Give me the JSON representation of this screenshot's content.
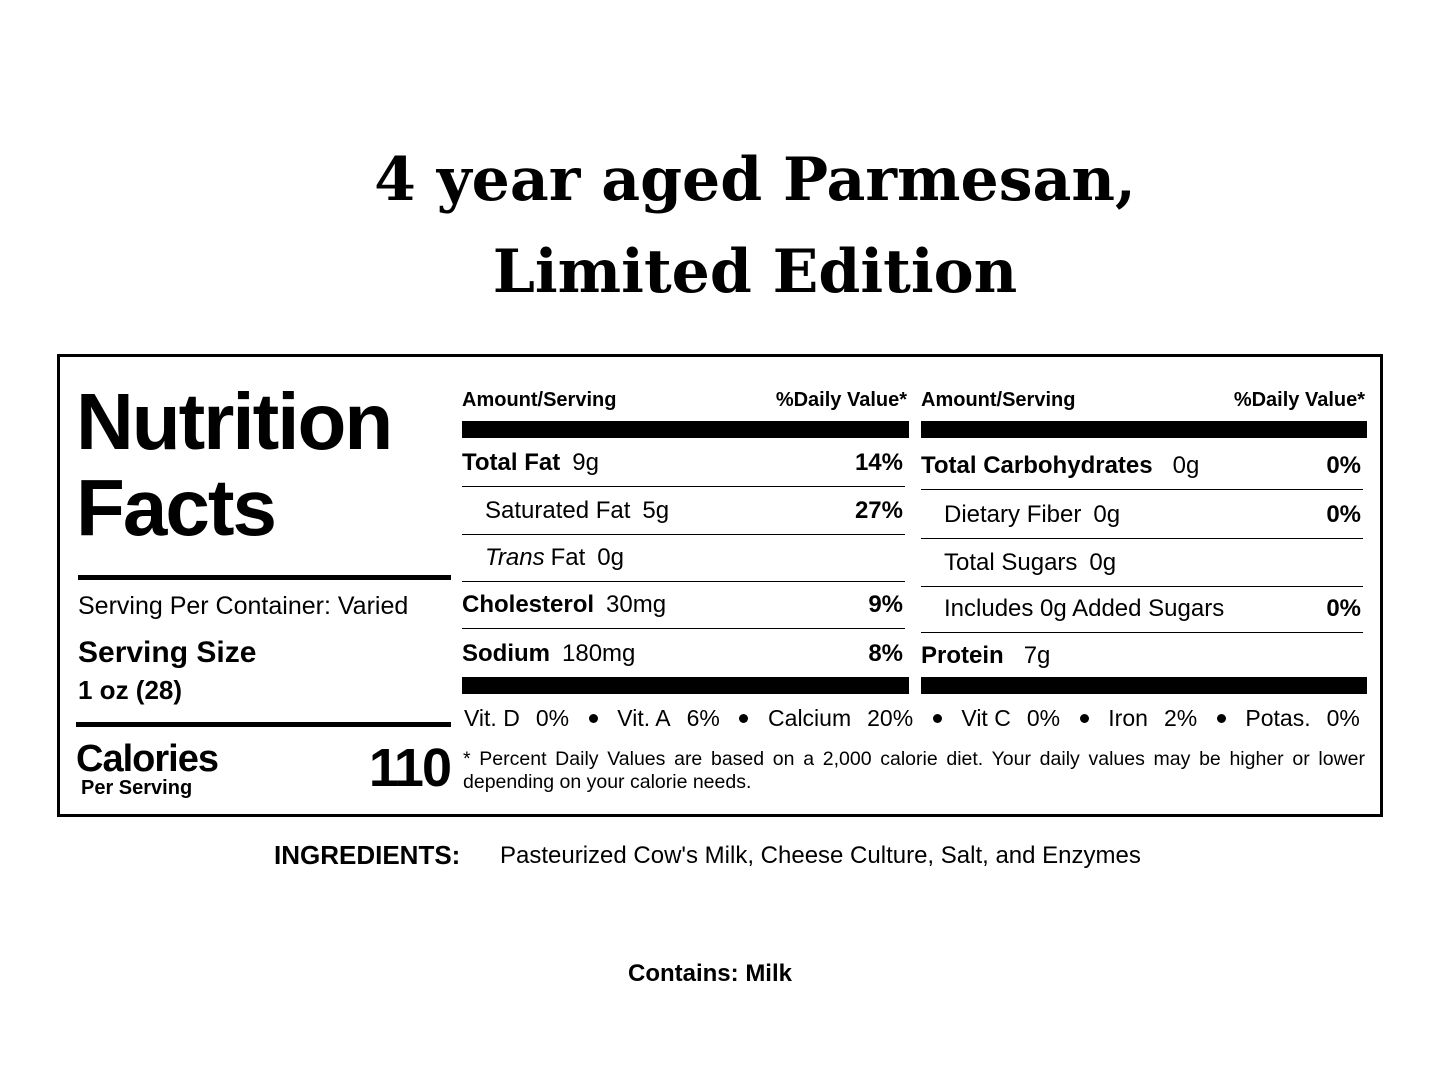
{
  "title": [
    "4 year aged Parmesan,",
    "Limited Edition"
  ],
  "label": {
    "heading": [
      "Nutrition",
      "Facts"
    ],
    "servings_per_container": "Serving Per Container: Varied",
    "serving_size_label": "Serving Size",
    "serving_size": "1 oz (28)",
    "calories_label": "Calories",
    "per_serving": "Per Serving",
    "calories": "110",
    "columns": [
      {
        "header_amount": "Amount/Serving",
        "header_dv": "%Daily Value*",
        "rows": [
          {
            "name": "Total Fat",
            "amount": "9g",
            "dv": "14%",
            "bold": true
          },
          {
            "name": "Saturated Fat",
            "amount": "5g",
            "dv": "27%",
            "indent": true
          },
          {
            "name_italic": "Trans",
            "name": "Fat",
            "amount": "0g",
            "indent": true
          },
          {
            "name": "Cholesterol",
            "amount": "30mg",
            "dv": "9%",
            "bold": true
          },
          {
            "name": "Sodium",
            "amount": "180mg",
            "dv": "8%",
            "bold": true
          }
        ]
      },
      {
        "header_amount": "Amount/Serving",
        "header_dv": "%Daily Value*",
        "rows": [
          {
            "name": "Total Carbohydrates",
            "amount": "0g",
            "dv": "0%",
            "bold": true
          },
          {
            "name": "Dietary Fiber",
            "amount": "0g",
            "dv": "0%",
            "indent": true
          },
          {
            "name": "Total Sugars",
            "amount": "0g",
            "indent": true
          },
          {
            "name": "Includes 0g Added Sugars",
            "dv": "0%",
            "indent": true
          },
          {
            "name": "Protein",
            "amount": "7g",
            "bold": true
          }
        ]
      }
    ],
    "vitamins": [
      {
        "name": "Vit. D",
        "value": "0%"
      },
      {
        "name": "Vit. A",
        "value": "6%"
      },
      {
        "name": "Calcium",
        "value": "20%"
      },
      {
        "name": "Vit C",
        "value": "0%"
      },
      {
        "name": "Iron",
        "value": "2%"
      },
      {
        "name": "Potas.",
        "value": "0%"
      }
    ],
    "footnote": "* Percent Daily Values are based on a 2,000 calorie diet. Your daily values may be higher or lower depending on your calorie needs."
  },
  "ingredients_label": "INGREDIENTS:",
  "ingredients": "Pasteurized Cow's Milk, Cheese Culture, Salt, and Enzymes",
  "contains": "Contains: Milk"
}
